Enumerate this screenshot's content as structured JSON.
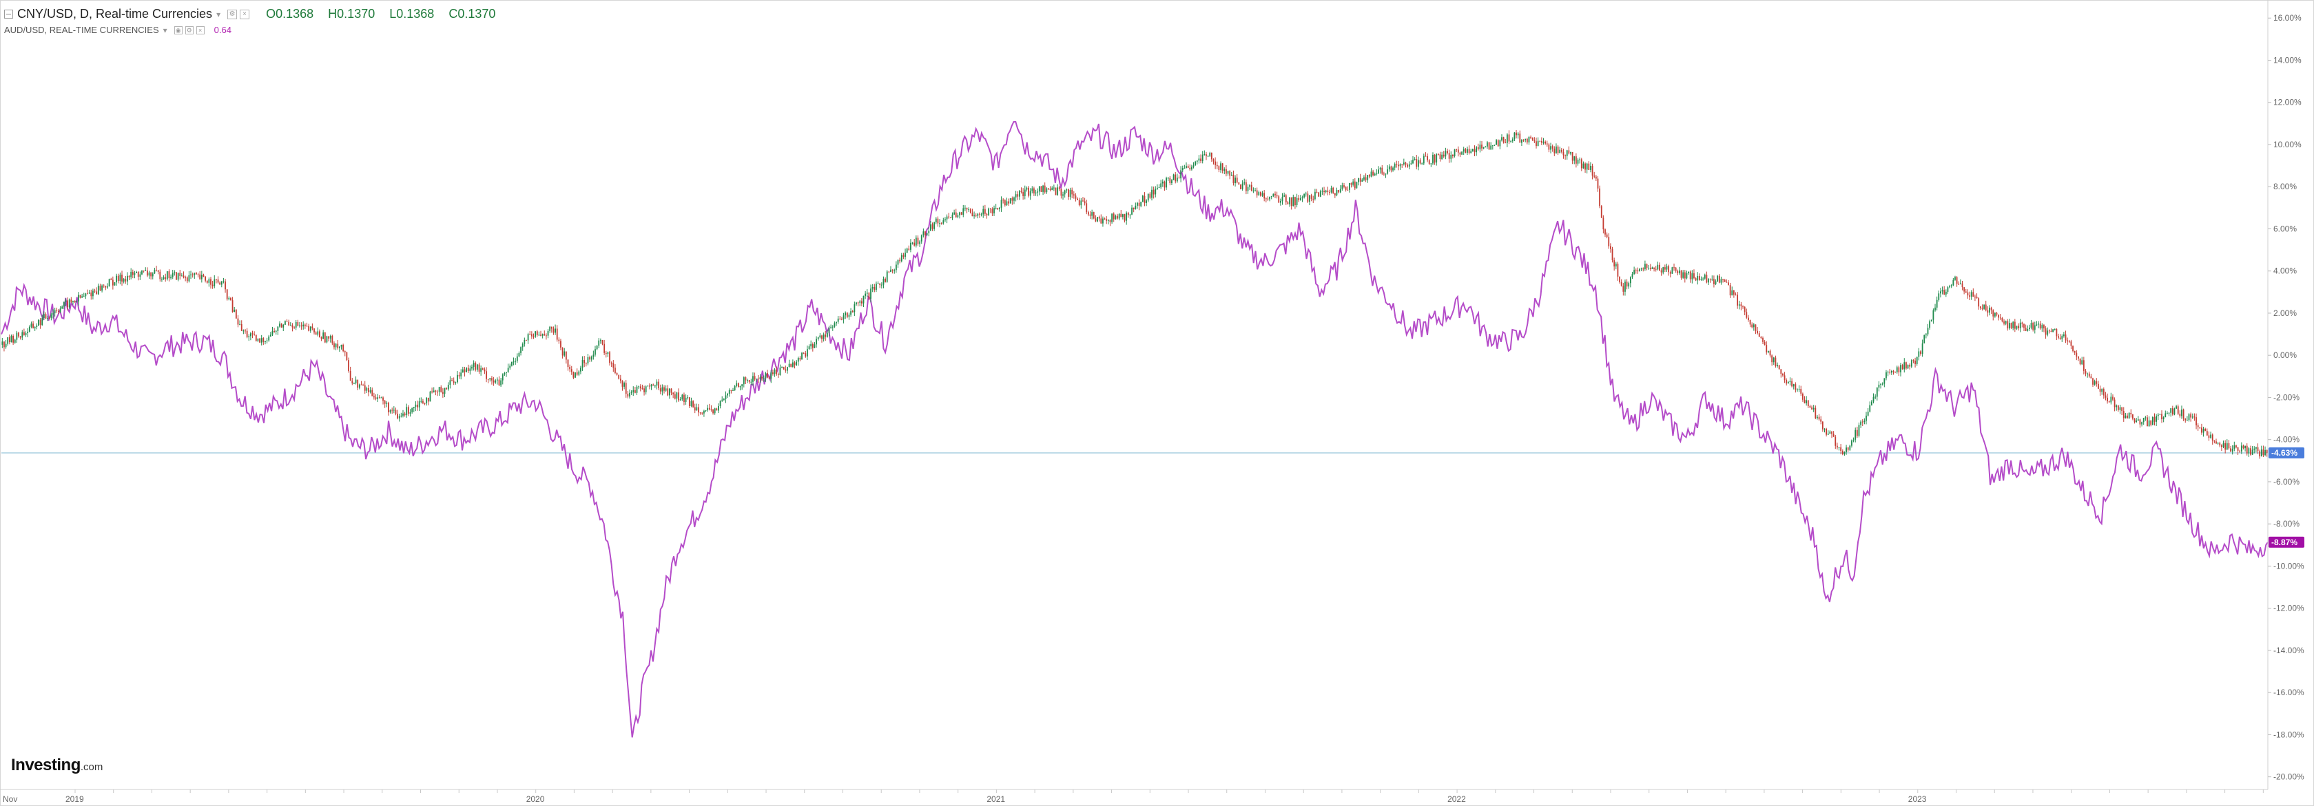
{
  "legend": {
    "main_title": "CNY/USD, D, Real-time Currencies",
    "ohlc": {
      "open": "O0.1368",
      "high": "H0.1370",
      "low": "L0.1368",
      "close": "C0.1370"
    },
    "secondary_title": "AUD/USD, REAL-TIME CURRENCIES",
    "secondary_value": "0.64"
  },
  "logo": {
    "brand": "Investing",
    "suffix": ".com"
  },
  "colors": {
    "up": "#1f8a4c",
    "down": "#c43c32",
    "aud_line": "#b54cc9",
    "zero_line": "#a9cfe0",
    "cny_label_bg": "#4a7ddc",
    "aud_label_bg": "#a10fa5",
    "axis_text": "#666666"
  },
  "chart_data": {
    "type": "line",
    "percent_axis": {
      "ticks": [
        "16.00%",
        "14.00%",
        "12.00%",
        "10.00%",
        "8.00%",
        "6.00%",
        "4.00%",
        "2.00%",
        "0.00%",
        "-2.00%",
        "-4.00%",
        "-6.00%",
        "-8.00%",
        "-10.00%",
        "-12.00%",
        "-14.00%",
        "-16.00%",
        "-18.00%",
        "-20.00%"
      ],
      "ylim": [
        -20.6,
        16.4
      ]
    },
    "time_axis": {
      "labels": [
        {
          "label": "Nov",
          "t": 2018.84
        },
        {
          "label": "2019",
          "t": 2019.0
        },
        {
          "label": "2020",
          "t": 2020.0
        },
        {
          "label": "2021",
          "t": 2021.0
        },
        {
          "label": "2022",
          "t": 2022.0
        },
        {
          "label": "2023",
          "t": 2023.0
        }
      ],
      "xlim": [
        2018.84,
        2023.76
      ]
    },
    "current_labels": [
      {
        "series": "CNY/USD",
        "value": -4.63,
        "text": "-4.63%"
      },
      {
        "series": "AUD/USD",
        "value": -8.87,
        "text": "-8.87%"
      }
    ],
    "series": [
      {
        "name": "CNY/USD",
        "style": "candles",
        "points": [
          [
            2018.84,
            0.5
          ],
          [
            2018.9,
            1.2
          ],
          [
            2018.96,
            2.2
          ],
          [
            2019.02,
            2.8
          ],
          [
            2019.08,
            3.5
          ],
          [
            2019.14,
            3.9
          ],
          [
            2019.2,
            3.8
          ],
          [
            2019.26,
            3.7
          ],
          [
            2019.32,
            3.4
          ],
          [
            2019.36,
            1.2
          ],
          [
            2019.4,
            0.6
          ],
          [
            2019.46,
            1.6
          ],
          [
            2019.52,
            1.1
          ],
          [
            2019.58,
            0.4
          ],
          [
            2019.6,
            -1.2
          ],
          [
            2019.66,
            -2.0
          ],
          [
            2019.7,
            -3.0
          ],
          [
            2019.74,
            -2.3
          ],
          [
            2019.8,
            -1.6
          ],
          [
            2019.86,
            -0.4
          ],
          [
            2019.92,
            -1.4
          ],
          [
            2019.98,
            0.8
          ],
          [
            2020.04,
            1.2
          ],
          [
            2020.08,
            -1.0
          ],
          [
            2020.14,
            0.6
          ],
          [
            2020.2,
            -1.8
          ],
          [
            2020.26,
            -1.4
          ],
          [
            2020.32,
            -2.1
          ],
          [
            2020.38,
            -2.8
          ],
          [
            2020.44,
            -1.3
          ],
          [
            2020.5,
            -1.0
          ],
          [
            2020.56,
            -0.4
          ],
          [
            2020.62,
            0.9
          ],
          [
            2020.68,
            2.0
          ],
          [
            2020.74,
            3.2
          ],
          [
            2020.8,
            4.8
          ],
          [
            2020.86,
            6.2
          ],
          [
            2020.92,
            6.8
          ],
          [
            2020.98,
            6.8
          ],
          [
            2021.04,
            7.6
          ],
          [
            2021.1,
            7.9
          ],
          [
            2021.16,
            7.7
          ],
          [
            2021.22,
            6.4
          ],
          [
            2021.28,
            6.6
          ],
          [
            2021.34,
            7.8
          ],
          [
            2021.4,
            8.6
          ],
          [
            2021.46,
            9.5
          ],
          [
            2021.52,
            8.2
          ],
          [
            2021.58,
            7.6
          ],
          [
            2021.64,
            7.3
          ],
          [
            2021.7,
            7.6
          ],
          [
            2021.76,
            7.9
          ],
          [
            2021.82,
            8.6
          ],
          [
            2021.88,
            9.0
          ],
          [
            2021.94,
            9.3
          ],
          [
            2022.0,
            9.6
          ],
          [
            2022.06,
            9.9
          ],
          [
            2022.12,
            10.4
          ],
          [
            2022.18,
            10.0
          ],
          [
            2022.24,
            9.6
          ],
          [
            2022.3,
            8.6
          ],
          [
            2022.32,
            5.8
          ],
          [
            2022.36,
            3.2
          ],
          [
            2022.4,
            4.3
          ],
          [
            2022.46,
            4.0
          ],
          [
            2022.52,
            3.7
          ],
          [
            2022.58,
            3.5
          ],
          [
            2022.64,
            1.5
          ],
          [
            2022.7,
            -0.8
          ],
          [
            2022.76,
            -2.2
          ],
          [
            2022.8,
            -3.6
          ],
          [
            2022.84,
            -4.6
          ],
          [
            2022.88,
            -3.2
          ],
          [
            2022.92,
            -1.2
          ],
          [
            2022.96,
            -0.6
          ],
          [
            2023.0,
            -0.2
          ],
          [
            2023.04,
            2.6
          ],
          [
            2023.08,
            3.6
          ],
          [
            2023.12,
            2.7
          ],
          [
            2023.16,
            2.0
          ],
          [
            2023.2,
            1.4
          ],
          [
            2023.26,
            1.3
          ],
          [
            2023.32,
            0.9
          ],
          [
            2023.38,
            -1.2
          ],
          [
            2023.44,
            -2.7
          ],
          [
            2023.5,
            -3.2
          ],
          [
            2023.56,
            -2.6
          ],
          [
            2023.6,
            -3.1
          ],
          [
            2023.64,
            -4.0
          ],
          [
            2023.68,
            -4.4
          ],
          [
            2023.72,
            -4.5
          ],
          [
            2023.76,
            -4.63
          ]
        ]
      },
      {
        "name": "AUD/USD",
        "style": "line",
        "points": [
          [
            2018.84,
            1.0
          ],
          [
            2018.88,
            3.2
          ],
          [
            2018.92,
            2.4
          ],
          [
            2018.96,
            1.8
          ],
          [
            2019.0,
            2.6
          ],
          [
            2019.04,
            1.2
          ],
          [
            2019.08,
            1.7
          ],
          [
            2019.12,
            0.6
          ],
          [
            2019.16,
            -0.2
          ],
          [
            2019.2,
            0.4
          ],
          [
            2019.24,
            0.6
          ],
          [
            2019.28,
            0.7
          ],
          [
            2019.32,
            0.0
          ],
          [
            2019.36,
            -2.1
          ],
          [
            2019.4,
            -2.8
          ],
          [
            2019.44,
            -2.3
          ],
          [
            2019.48,
            -1.5
          ],
          [
            2019.52,
            -0.5
          ],
          [
            2019.56,
            -2.5
          ],
          [
            2019.6,
            -4.2
          ],
          [
            2019.64,
            -4.5
          ],
          [
            2019.68,
            -3.6
          ],
          [
            2019.72,
            -4.6
          ],
          [
            2019.76,
            -4.1
          ],
          [
            2019.8,
            -3.5
          ],
          [
            2019.84,
            -4.0
          ],
          [
            2019.88,
            -3.6
          ],
          [
            2019.92,
            -3.2
          ],
          [
            2019.96,
            -2.4
          ],
          [
            2020.0,
            -2.2
          ],
          [
            2020.04,
            -3.8
          ],
          [
            2020.08,
            -5.3
          ],
          [
            2020.12,
            -6.2
          ],
          [
            2020.15,
            -8.2
          ],
          [
            2020.17,
            -10.6
          ],
          [
            2020.19,
            -12.4
          ],
          [
            2020.21,
            -18.5
          ],
          [
            2020.23,
            -16.0
          ],
          [
            2020.25,
            -14.5
          ],
          [
            2020.28,
            -11.2
          ],
          [
            2020.31,
            -9.0
          ],
          [
            2020.35,
            -7.5
          ],
          [
            2020.38,
            -6.0
          ],
          [
            2020.42,
            -3.2
          ],
          [
            2020.45,
            -2.2
          ],
          [
            2020.5,
            -0.8
          ],
          [
            2020.56,
            0.6
          ],
          [
            2020.6,
            2.3
          ],
          [
            2020.64,
            1.0
          ],
          [
            2020.68,
            0.0
          ],
          [
            2020.72,
            2.6
          ],
          [
            2020.76,
            0.6
          ],
          [
            2020.8,
            3.6
          ],
          [
            2020.84,
            5.0
          ],
          [
            2020.88,
            8.0
          ],
          [
            2020.92,
            9.6
          ],
          [
            2020.96,
            10.5
          ],
          [
            2021.0,
            9.0
          ],
          [
            2021.04,
            11.6
          ],
          [
            2021.06,
            10.0
          ],
          [
            2021.1,
            9.4
          ],
          [
            2021.14,
            8.2
          ],
          [
            2021.18,
            9.9
          ],
          [
            2021.22,
            10.5
          ],
          [
            2021.26,
            9.6
          ],
          [
            2021.3,
            10.5
          ],
          [
            2021.34,
            9.6
          ],
          [
            2021.38,
            9.8
          ],
          [
            2021.42,
            8.0
          ],
          [
            2021.46,
            6.8
          ],
          [
            2021.5,
            7.0
          ],
          [
            2021.54,
            5.0
          ],
          [
            2021.58,
            4.4
          ],
          [
            2021.62,
            5.0
          ],
          [
            2021.66,
            6.0
          ],
          [
            2021.7,
            3.0
          ],
          [
            2021.74,
            4.1
          ],
          [
            2021.78,
            6.9
          ],
          [
            2021.82,
            3.5
          ],
          [
            2021.86,
            2.4
          ],
          [
            2021.9,
            1.0
          ],
          [
            2021.94,
            1.5
          ],
          [
            2021.98,
            2.0
          ],
          [
            2022.02,
            2.5
          ],
          [
            2022.06,
            1.0
          ],
          [
            2022.1,
            0.6
          ],
          [
            2022.14,
            0.9
          ],
          [
            2022.18,
            3.0
          ],
          [
            2022.22,
            6.2
          ],
          [
            2022.26,
            5.0
          ],
          [
            2022.3,
            3.3
          ],
          [
            2022.34,
            -2.0
          ],
          [
            2022.38,
            -3.4
          ],
          [
            2022.42,
            -2.0
          ],
          [
            2022.46,
            -3.2
          ],
          [
            2022.5,
            -4.0
          ],
          [
            2022.54,
            -2.0
          ],
          [
            2022.58,
            -3.1
          ],
          [
            2022.62,
            -2.4
          ],
          [
            2022.66,
            -3.6
          ],
          [
            2022.7,
            -4.8
          ],
          [
            2022.74,
            -7.0
          ],
          [
            2022.78,
            -9.0
          ],
          [
            2022.8,
            -11.8
          ],
          [
            2022.82,
            -10.5
          ],
          [
            2022.84,
            -9.5
          ],
          [
            2022.86,
            -10.4
          ],
          [
            2022.88,
            -7.0
          ],
          [
            2022.92,
            -5.0
          ],
          [
            2022.96,
            -4.0
          ],
          [
            2023.0,
            -4.6
          ],
          [
            2023.04,
            -1.0
          ],
          [
            2023.08,
            -2.5
          ],
          [
            2023.12,
            -1.5
          ],
          [
            2023.16,
            -6.0
          ],
          [
            2023.2,
            -5.1
          ],
          [
            2023.24,
            -5.8
          ],
          [
            2023.28,
            -5.3
          ],
          [
            2023.32,
            -4.7
          ],
          [
            2023.36,
            -6.5
          ],
          [
            2023.4,
            -7.5
          ],
          [
            2023.44,
            -4.4
          ],
          [
            2023.48,
            -5.6
          ],
          [
            2023.52,
            -4.6
          ],
          [
            2023.56,
            -6.5
          ],
          [
            2023.6,
            -8.1
          ],
          [
            2023.64,
            -9.4
          ],
          [
            2023.68,
            -8.7
          ],
          [
            2023.72,
            -9.3
          ],
          [
            2023.76,
            -8.87
          ]
        ]
      }
    ]
  }
}
